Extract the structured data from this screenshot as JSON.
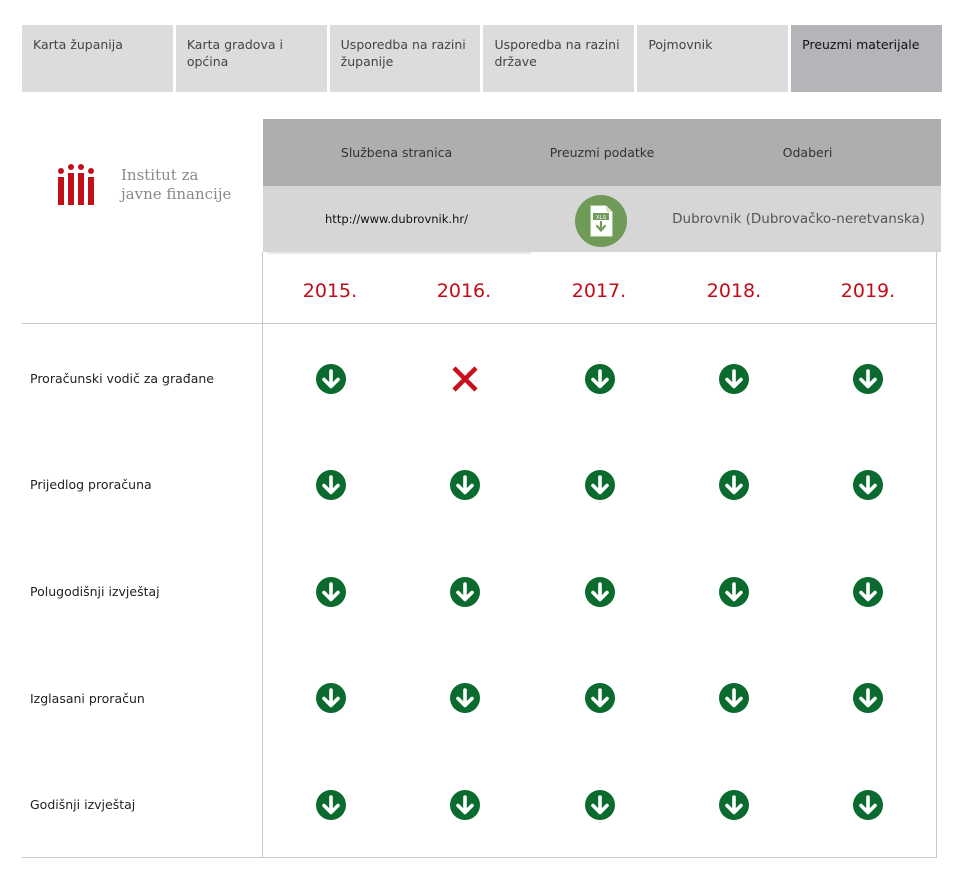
{
  "nav": {
    "tabs": [
      {
        "label": "Karta županija"
      },
      {
        "label": "Karta gradova i općina"
      },
      {
        "label": "Usporedba na razini županije"
      },
      {
        "label": "Usporedba na razini države"
      },
      {
        "label": "Pojmovnik"
      },
      {
        "label": "Preuzmi materijale",
        "active": true
      }
    ]
  },
  "logo": {
    "line1": "Institut za",
    "line2": "javne financije",
    "color": "#c0101a"
  },
  "header": {
    "official_site_label": "Službena stranica",
    "download_data_label": "Preuzmi podatke",
    "select_label": "Odaberi",
    "url": "http://www.dubrovnik.hr/",
    "file_icon": "xls-download-icon",
    "selected_city": "Dubrovnik (Dubrovačko-neretvanska)"
  },
  "years": [
    "2015.",
    "2016.",
    "2017.",
    "2018.",
    "2019."
  ],
  "rows": [
    {
      "label": "Proračunski vodič za građane",
      "available": [
        true,
        false,
        true,
        true,
        true
      ]
    },
    {
      "label": "Prijedlog proračuna",
      "available": [
        true,
        true,
        true,
        true,
        true
      ]
    },
    {
      "label": "Polugodišnji izvještaj",
      "available": [
        true,
        true,
        true,
        true,
        true
      ]
    },
    {
      "label": "Izglasani proračun",
      "available": [
        true,
        true,
        true,
        true,
        true
      ]
    },
    {
      "label": "Godišnji izvještaj",
      "available": [
        true,
        true,
        true,
        true,
        true
      ]
    }
  ],
  "colors": {
    "available": "#0b6b2e",
    "missing": "#c8101c",
    "year": "#c00d18"
  }
}
